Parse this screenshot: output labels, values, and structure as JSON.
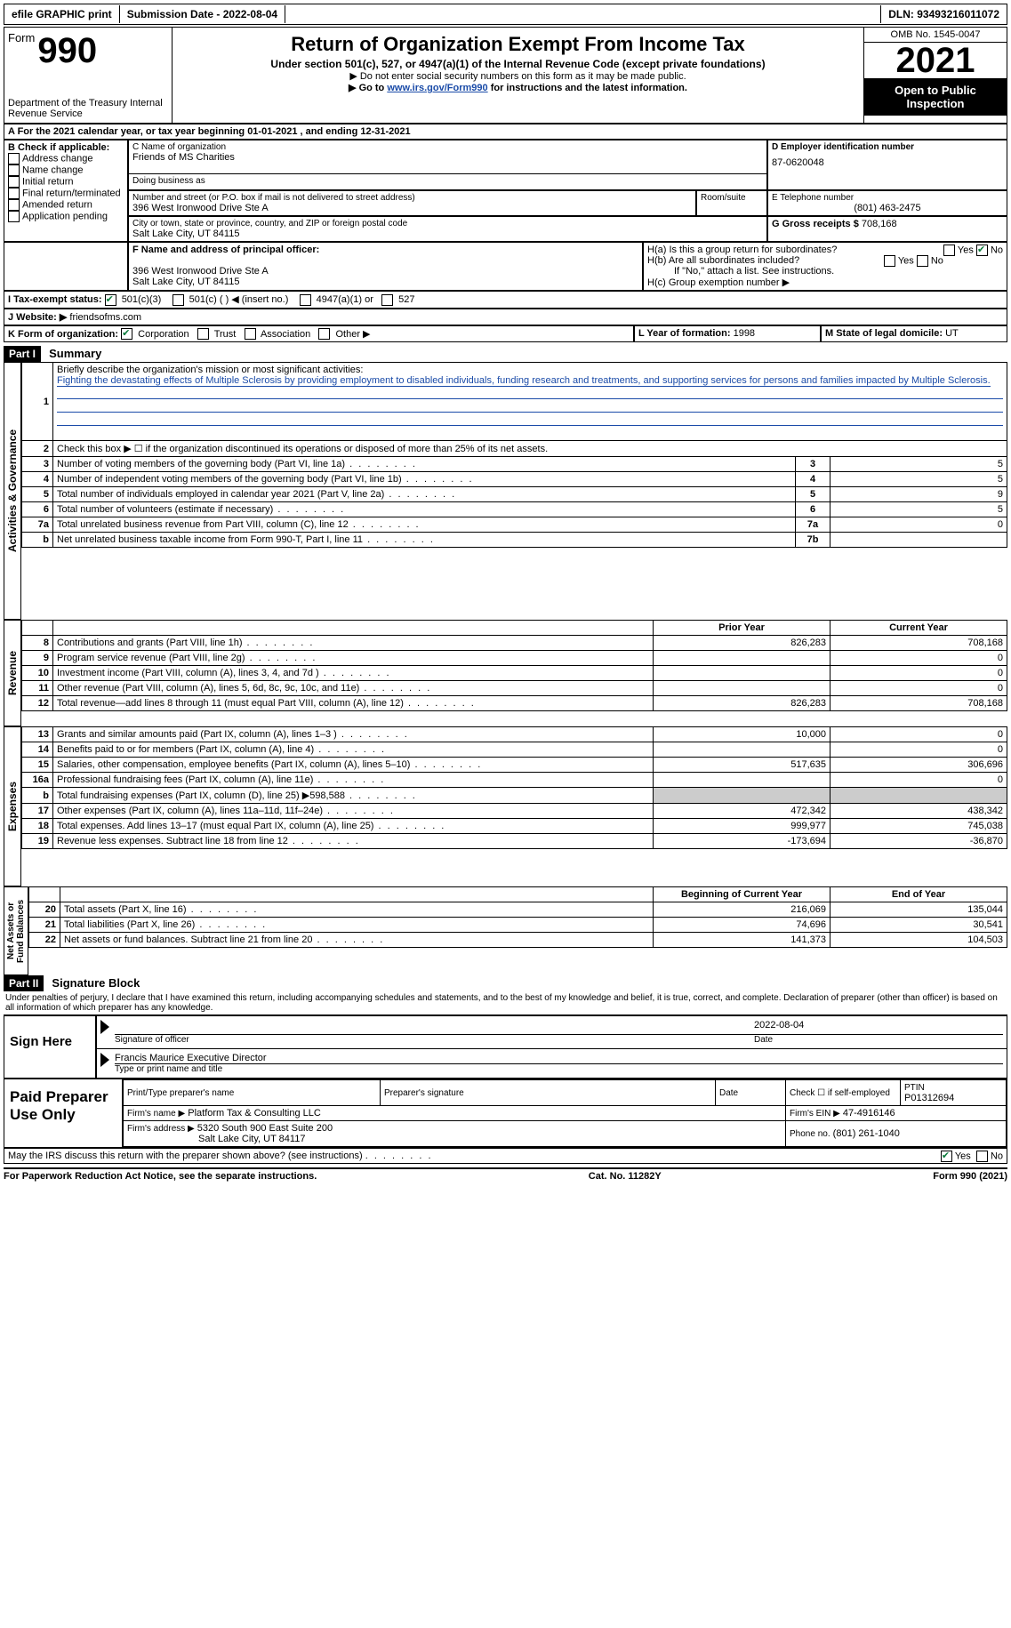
{
  "topbar": {
    "efile": "efile GRAPHIC print",
    "submission_label": "Submission Date - ",
    "submission_date": "2022-08-04",
    "dln_label": "DLN: ",
    "dln": "93493216011072"
  },
  "header": {
    "form_label": "Form",
    "form_number": "990",
    "dept": "Department of the Treasury Internal Revenue Service",
    "title": "Return of Organization Exempt From Income Tax",
    "subtitle": "Under section 501(c), 527, or 4947(a)(1) of the Internal Revenue Code (except private foundations)",
    "note1": "▶ Do not enter social security numbers on this form as it may be made public.",
    "note2_pre": "▶ Go to ",
    "note2_link": "www.irs.gov/Form990",
    "note2_post": " for instructions and the latest information.",
    "omb": "OMB No. 1545-0047",
    "tax_year": "2021",
    "open_public": "Open to Public Inspection"
  },
  "sectionA": {
    "line": "A For the 2021 calendar year, or tax year beginning 01-01-2021   , and ending 12-31-2021"
  },
  "sectionB": {
    "label": "B Check if applicable:",
    "items": [
      "Address change",
      "Name change",
      "Initial return",
      "Final return/terminated",
      "Amended return",
      "Application pending"
    ]
  },
  "sectionC": {
    "name_label": "C Name of organization",
    "name": "Friends of MS Charities",
    "dba_label": "Doing business as",
    "dba": "",
    "street_label": "Number and street (or P.O. box if mail is not delivered to street address)",
    "room_label": "Room/suite",
    "street": "396 West Ironwood Drive Ste A",
    "city_label": "City or town, state or province, country, and ZIP or foreign postal code",
    "city": "Salt Lake City, UT  84115"
  },
  "sectionD": {
    "label": "D Employer identification number",
    "value": "87-0620048"
  },
  "sectionE": {
    "label": "E Telephone number",
    "value": "(801) 463-2475"
  },
  "sectionG": {
    "label": "G Gross receipts $",
    "value": "708,168"
  },
  "sectionF": {
    "label": "F Name and address of principal officer:",
    "line1": "396 West Ironwood Drive Ste A",
    "line2": "Salt Lake City, UT  84115"
  },
  "sectionH": {
    "ha": "H(a)  Is this a group return for subordinates?",
    "hb": "H(b)  Are all subordinates included?",
    "hnote": "If \"No,\" attach a list. See instructions.",
    "hc": "H(c)  Group exemption number ▶",
    "yes": "Yes",
    "no": "No"
  },
  "sectionI": {
    "label": "I   Tax-exempt status:",
    "opts": [
      "501(c)(3)",
      "501(c) (  ) ◀ (insert no.)",
      "4947(a)(1) or",
      "527"
    ]
  },
  "sectionJ": {
    "label": "J   Website: ▶",
    "value": "friendsofms.com"
  },
  "sectionK": {
    "label": "K Form of organization:",
    "opts": [
      "Corporation",
      "Trust",
      "Association",
      "Other ▶"
    ]
  },
  "sectionL": {
    "label": "L Year of formation:",
    "value": "1998"
  },
  "sectionM": {
    "label": "M State of legal domicile:",
    "value": "UT"
  },
  "part1": {
    "header": "Part I",
    "title": "Summary",
    "q1": "Briefly describe the organization's mission or most significant activities:",
    "mission": "Fighting the devastating effects of Multiple Sclerosis by providing employment to disabled individuals, funding research and treatments, and supporting services for persons and families impacted by Multiple Sclerosis.",
    "q2": "Check this box ▶ ☐ if the organization discontinued its operations or disposed of more than 25% of its net assets.",
    "governance_label": "Activities & Governance",
    "revenue_label": "Revenue",
    "expenses_label": "Expenses",
    "netassets_label": "Net Assets or Fund Balances",
    "rows_gov": [
      {
        "n": "3",
        "text": "Number of voting members of the governing body (Part VI, line 1a)",
        "box": "3",
        "val": "5"
      },
      {
        "n": "4",
        "text": "Number of independent voting members of the governing body (Part VI, line 1b)",
        "box": "4",
        "val": "5"
      },
      {
        "n": "5",
        "text": "Total number of individuals employed in calendar year 2021 (Part V, line 2a)",
        "box": "5",
        "val": "9"
      },
      {
        "n": "6",
        "text": "Total number of volunteers (estimate if necessary)",
        "box": "6",
        "val": "5"
      },
      {
        "n": "7a",
        "text": "Total unrelated business revenue from Part VIII, column (C), line 12",
        "box": "7a",
        "val": "0"
      },
      {
        "n": "b",
        "text": "Net unrelated business taxable income from Form 990-T, Part I, line 11",
        "box": "7b",
        "val": ""
      }
    ],
    "col_prior": "Prior Year",
    "col_current": "Current Year",
    "rows_rev": [
      {
        "n": "8",
        "text": "Contributions and grants (Part VIII, line 1h)",
        "py": "826,283",
        "cy": "708,168"
      },
      {
        "n": "9",
        "text": "Program service revenue (Part VIII, line 2g)",
        "py": "",
        "cy": "0"
      },
      {
        "n": "10",
        "text": "Investment income (Part VIII, column (A), lines 3, 4, and 7d )",
        "py": "",
        "cy": "0"
      },
      {
        "n": "11",
        "text": "Other revenue (Part VIII, column (A), lines 5, 6d, 8c, 9c, 10c, and 11e)",
        "py": "",
        "cy": "0"
      },
      {
        "n": "12",
        "text": "Total revenue—add lines 8 through 11 (must equal Part VIII, column (A), line 12)",
        "py": "826,283",
        "cy": "708,168"
      }
    ],
    "rows_exp": [
      {
        "n": "13",
        "text": "Grants and similar amounts paid (Part IX, column (A), lines 1–3 )",
        "py": "10,000",
        "cy": "0"
      },
      {
        "n": "14",
        "text": "Benefits paid to or for members (Part IX, column (A), line 4)",
        "py": "",
        "cy": "0"
      },
      {
        "n": "15",
        "text": "Salaries, other compensation, employee benefits (Part IX, column (A), lines 5–10)",
        "py": "517,635",
        "cy": "306,696"
      },
      {
        "n": "16a",
        "text": "Professional fundraising fees (Part IX, column (A), line 11e)",
        "py": "",
        "cy": "0"
      },
      {
        "n": "b",
        "text": "Total fundraising expenses (Part IX, column (D), line 25) ▶598,588",
        "py": "shaded",
        "cy": "shaded"
      },
      {
        "n": "17",
        "text": "Other expenses (Part IX, column (A), lines 11a–11d, 11f–24e)",
        "py": "472,342",
        "cy": "438,342"
      },
      {
        "n": "18",
        "text": "Total expenses. Add lines 13–17 (must equal Part IX, column (A), line 25)",
        "py": "999,977",
        "cy": "745,038"
      },
      {
        "n": "19",
        "text": "Revenue less expenses. Subtract line 18 from line 12",
        "py": "-173,694",
        "cy": "-36,870"
      }
    ],
    "col_begin": "Beginning of Current Year",
    "col_end": "End of Year",
    "rows_net": [
      {
        "n": "20",
        "text": "Total assets (Part X, line 16)",
        "py": "216,069",
        "cy": "135,044"
      },
      {
        "n": "21",
        "text": "Total liabilities (Part X, line 26)",
        "py": "74,696",
        "cy": "30,541"
      },
      {
        "n": "22",
        "text": "Net assets or fund balances. Subtract line 21 from line 20",
        "py": "141,373",
        "cy": "104,503"
      }
    ]
  },
  "part2": {
    "header": "Part II",
    "title": "Signature Block",
    "declaration": "Under penalties of perjury, I declare that I have examined this return, including accompanying schedules and statements, and to the best of my knowledge and belief, it is true, correct, and complete. Declaration of preparer (other than officer) is based on all information of which preparer has any knowledge.",
    "sign_here": "Sign Here",
    "sig_officer": "Signature of officer",
    "sig_date": "2022-08-04",
    "date_label": "Date",
    "officer_name": "Francis Maurice  Executive Director",
    "type_label": "Type or print name and title",
    "paid": "Paid Preparer Use Only",
    "prep_name_label": "Print/Type preparer's name",
    "prep_sig_label": "Preparer's signature",
    "check_self": "Check ☐ if self-employed",
    "ptin_label": "PTIN",
    "ptin": "P01312694",
    "firm_name_label": "Firm's name   ▶",
    "firm_name": "Platform Tax & Consulting LLC",
    "firm_ein_label": "Firm's EIN ▶",
    "firm_ein": "47-4916146",
    "firm_addr_label": "Firm's address ▶",
    "firm_addr1": "5320 South 900 East Suite 200",
    "firm_addr2": "Salt Lake City, UT  84117",
    "phone_label": "Phone no.",
    "phone": "(801) 261-1040",
    "discuss": "May the IRS discuss this return with the preparer shown above? (see instructions)",
    "yes": "Yes",
    "no": "No"
  },
  "footer": {
    "left": "For Paperwork Reduction Act Notice, see the separate instructions.",
    "mid": "Cat. No. 11282Y",
    "right": "Form 990 (2021)"
  }
}
